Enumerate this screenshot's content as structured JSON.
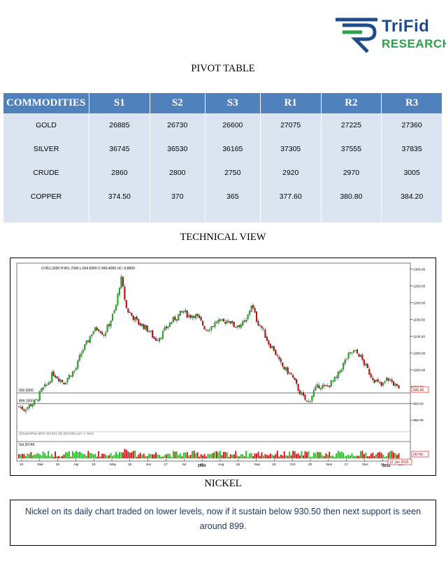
{
  "brand": {
    "name_line1": "TriFid",
    "name_line2": "RESEARCH"
  },
  "pivot_heading": "PIVOT TABLE",
  "pivot": {
    "headers": [
      "COMMODITIES",
      "S1",
      "S2",
      "S3",
      "R1",
      "R2",
      "R3"
    ],
    "rows": [
      [
        "GOLD",
        "26885",
        "26730",
        "26600",
        "27075",
        "27225",
        "27360"
      ],
      [
        "SILVER",
        "36745",
        "36530",
        "36165",
        "37305",
        "37555",
        "37835"
      ],
      [
        "CRUDE",
        "2860",
        "2800",
        "2750",
        "2920",
        "2970",
        "3005"
      ],
      [
        "COPPER",
        "374.50",
        "370",
        "365",
        "377.60",
        "380.80",
        "384.20"
      ]
    ]
  },
  "technical_heading": "TECHNICAL VIEW",
  "chart_caption": "NICKEL",
  "chart_data": {
    "type": "candlestick",
    "ohlc_readout": "O:951.2000  H:951.7000  L:934.6000  C:940.4000  UC:-9.8000",
    "indicator_label": "@ExpertPlus MCX NICKEL (D) (NICKELCurr: 1 Year)",
    "volume_label": "Vol 26746",
    "y_ticks": [
      1300,
      1250,
      1200,
      1150,
      1100,
      1050,
      1000,
      950,
      900,
      850
    ],
    "y_tick_labels": [
      "1300.00",
      "1250.00",
      "1200.00",
      "1150.00",
      "1100.00",
      "1050.00",
      "1000.00",
      "950.00",
      "900.00",
      "850.00"
    ],
    "ylim": [
      815,
      1318
    ],
    "x_tick_labels": [
      "10",
      "Mar",
      "18",
      "Apr",
      "15",
      "May",
      "16",
      "Jun",
      "17",
      "Jul",
      "18",
      "Aug",
      "18",
      "Sep",
      "16",
      "Oct",
      "20",
      "Nov",
      "17",
      "Dec",
      "18",
      "Jan"
    ],
    "year_labels": [
      "2014",
      "2015"
    ],
    "last_date_label": "12 Jan 2015",
    "last_price_label": "940.40",
    "last_price": 940.4,
    "last_volume_label": "26746",
    "support_lines": [
      {
        "label": "930.5000",
        "value": 930.5
      },
      {
        "label": "899.1000",
        "value": 899.1
      }
    ],
    "close_path": [
      890,
      882,
      895,
      905,
      938,
      955,
      990,
      975,
      962,
      985,
      1000,
      1050,
      1080,
      1115,
      1125,
      1105,
      1140,
      1180,
      1275,
      1180,
      1160,
      1140,
      1130,
      1115,
      1090,
      1100,
      1125,
      1145,
      1160,
      1175,
      1160,
      1165,
      1145,
      1120,
      1130,
      1145,
      1140,
      1150,
      1130,
      1135,
      1140,
      1195,
      1145,
      1120,
      1080,
      1060,
      1020,
      1000,
      985,
      950,
      920,
      900,
      935,
      955,
      945,
      960,
      975,
      1010,
      1040,
      1055,
      1045,
      1015,
      985,
      965,
      950,
      975,
      960,
      940
    ]
  },
  "commentary": "Nickel on its daily chart traded on lower levels, now if it sustain below 930.50 then next support is seen around 899."
}
